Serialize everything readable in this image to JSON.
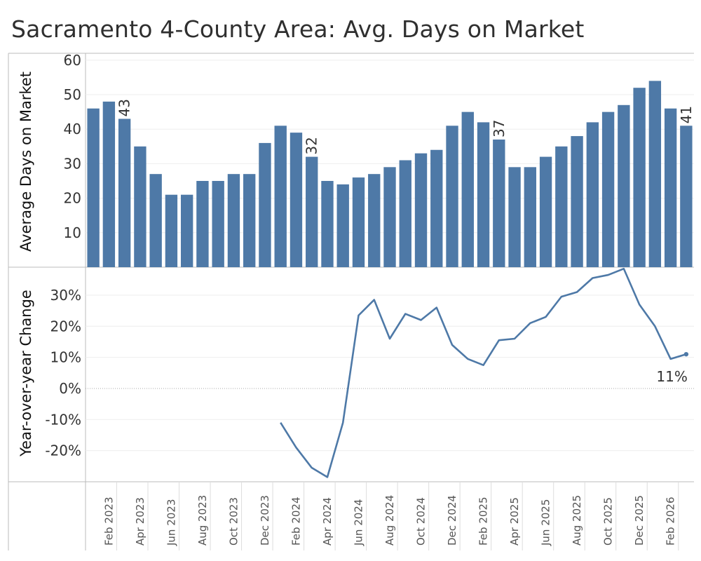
{
  "title": "Sacramento 4-County Area: Avg. Days on Market",
  "colors": {
    "bar": "#4e79a7",
    "line": "#4e79a7",
    "grid": "#eeeeee",
    "axis": "#bbbbbb"
  },
  "chart_data": [
    {
      "type": "bar",
      "ylabel": "Average Days on Market",
      "ylim": [
        0,
        62
      ],
      "yticks": [
        10,
        20,
        30,
        40,
        50,
        60
      ],
      "grid": true,
      "categories": [
        "Jan 2023",
        "Feb 2023",
        "Mar 2023",
        "Apr 2023",
        "May 2023",
        "Jun 2023",
        "Jul 2023",
        "Aug 2023",
        "Sep 2023",
        "Oct 2023",
        "Nov 2023",
        "Dec 2023",
        "Jan 2024",
        "Feb 2024",
        "Mar 2024",
        "Apr 2024",
        "May 2024",
        "Jun 2024",
        "Jul 2024",
        "Aug 2024",
        "Sep 2024",
        "Oct 2024",
        "Nov 2024",
        "Dec 2024",
        "Jan 2025",
        "Feb 2025",
        "Mar 2025",
        "Apr 2025",
        "May 2025",
        "Jun 2025",
        "Jul 2025",
        "Aug 2025",
        "Sep 2025",
        "Oct 2025",
        "Nov 2025",
        "Dec 2025",
        "Jan 2026",
        "Feb 2026",
        "Mar 2026"
      ],
      "values": [
        46,
        48,
        43,
        35,
        27,
        21,
        21,
        25,
        25,
        27,
        27,
        36,
        41,
        39,
        32,
        25,
        24,
        26,
        27,
        29,
        31,
        33,
        34,
        41,
        45,
        42,
        37,
        29,
        29,
        32,
        35,
        38,
        42,
        45,
        47,
        52,
        54,
        46,
        41
      ],
      "data_labels": [
        {
          "category": "Mar 2023",
          "text": "43"
        },
        {
          "category": "Mar 2024",
          "text": "32"
        },
        {
          "category": "Mar 2025",
          "text": "37"
        },
        {
          "category": "Mar 2026",
          "text": "41"
        }
      ]
    },
    {
      "type": "line",
      "ylabel": "Year-over-year Change",
      "ylim": [
        -30,
        39
      ],
      "yticks": [
        -20,
        -10,
        0,
        10,
        20,
        30
      ],
      "ytick_labels": [
        "-20%",
        "-10%",
        "0%",
        "10%",
        "20%",
        "30%"
      ],
      "grid": true,
      "zero_line": true,
      "x": [
        "Jan 2024",
        "Feb 2024",
        "Mar 2024",
        "Apr 2024",
        "May 2024",
        "Jun 2024",
        "Jul 2024",
        "Aug 2024",
        "Sep 2024",
        "Oct 2024",
        "Nov 2024",
        "Dec 2024",
        "Jan 2025",
        "Feb 2025",
        "Mar 2025",
        "Apr 2025",
        "May 2025",
        "Jun 2025",
        "Jul 2025",
        "Aug 2025",
        "Sep 2025",
        "Oct 2025",
        "Nov 2025",
        "Dec 2025",
        "Jan 2026",
        "Feb 2026",
        "Mar 2026"
      ],
      "values": [
        -11,
        -19,
        -25.5,
        -28.5,
        -11,
        23.5,
        28.5,
        16,
        24,
        22,
        26,
        14,
        9.5,
        7.5,
        15.5,
        16,
        21,
        23,
        29.5,
        31,
        35.5,
        36.5,
        38.5,
        27,
        20,
        9.5,
        11
      ],
      "end_label": "11%"
    }
  ],
  "x_axis": {
    "tick_labels": [
      "Feb 2023",
      "Apr 2023",
      "Jun 2023",
      "Aug 2023",
      "Oct 2023",
      "Dec 2023",
      "Feb 2024",
      "Apr 2024",
      "Jun 2024",
      "Aug 2024",
      "Oct 2024",
      "Dec 2024",
      "Feb 2025",
      "Apr 2025",
      "Jun 2025",
      "Aug 2025",
      "Oct 2025",
      "Dec 2025",
      "Feb 2026"
    ]
  }
}
